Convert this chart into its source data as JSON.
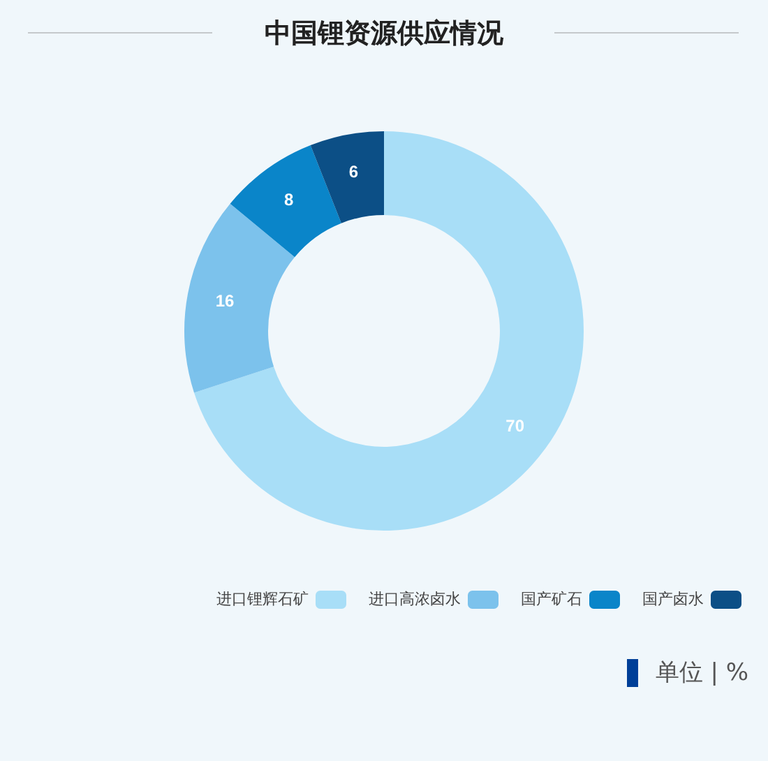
{
  "chart_data": {
    "type": "donut",
    "title": "中国锂资源供应情况",
    "categories": [
      "进口锂辉石矿",
      "进口高浓卤水",
      "国产矿石",
      "国产卤水"
    ],
    "values": [
      70,
      16,
      8,
      6
    ],
    "colors": [
      "#a8def7",
      "#7cc2ec",
      "#0a85c9",
      "#0c4f86"
    ],
    "data_labels": true,
    "legend": "bottom right",
    "annotations": [
      "单位 | %"
    ]
  }
}
